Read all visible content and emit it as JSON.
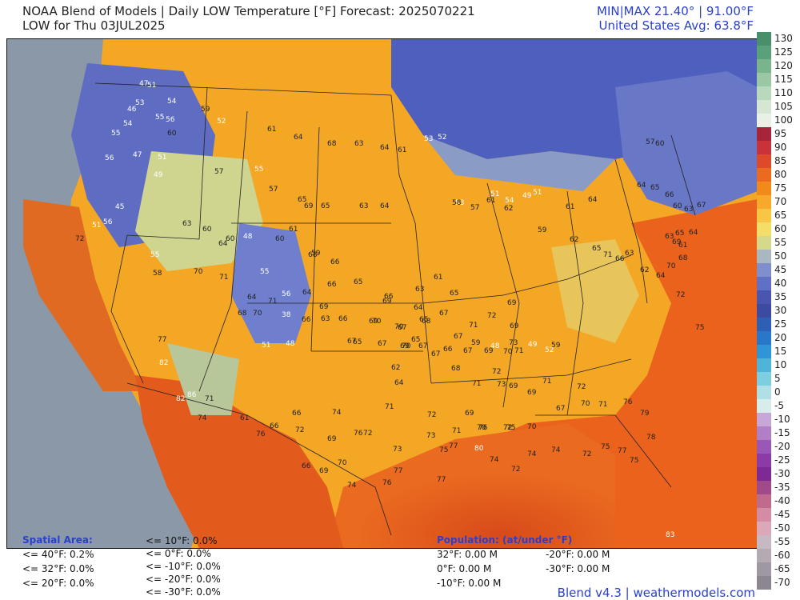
{
  "header": {
    "title": "NOAA Blend of Models | Daily LOW Temperature [°F] Forecast: 2025070221",
    "subtitle": "LOW for Thu 03JUL2025",
    "minmax": "MIN|MAX 21.40° | 91.00°F",
    "average": "United States Avg: 63.8°F"
  },
  "colorbar": {
    "labels": [
      "130",
      "125",
      "120",
      "115",
      "110",
      "105",
      "100",
      "95",
      "90",
      "85",
      "80",
      "75",
      "70",
      "65",
      "60",
      "55",
      "50",
      "45",
      "40",
      "35",
      "30",
      "25",
      "20",
      "15",
      "10",
      "5",
      "0",
      "-5",
      "-10",
      "-15",
      "-20",
      "-25",
      "-30",
      "-35",
      "-40",
      "-45",
      "-50",
      "-55",
      "-60",
      "-65",
      "-70"
    ],
    "colors": [
      "#4a8f6b",
      "#5aa07a",
      "#79b48c",
      "#9cc7a4",
      "#b9d9bc",
      "#d5e7d2",
      "#e9f1e5",
      "#a8243a",
      "#c8323a",
      "#dd4a2a",
      "#ea6a1f",
      "#f18a1a",
      "#f6a92a",
      "#f8c644",
      "#f3de6a",
      "#d6d98a",
      "#a9b8c0",
      "#7f8fce",
      "#6070c4",
      "#4a55b0",
      "#3c4aa0",
      "#2e5fb4",
      "#2a76c8",
      "#2f95d4",
      "#50b4d9",
      "#7fcee0",
      "#b0dfe5",
      "#d8ecec",
      "#c7a7d6",
      "#b07fc6",
      "#9a58b6",
      "#8b3aa6",
      "#7d2a95",
      "#a14a8a",
      "#c06b8e",
      "#d48ca4",
      "#dba8b8",
      "#c7b9c4",
      "#b4aab4",
      "#9f98a2",
      "#8c8690"
    ]
  },
  "spatial_area": {
    "header": "Spatial Area:",
    "col1": [
      "<= 40°F: 0.2%",
      "<= 32°F: 0.0%",
      "<= 20°F: 0.0%"
    ],
    "col2": [
      "<= 10°F: 0.0%",
      "<= 0°F: 0.0%",
      "<= -10°F: 0.0%",
      "<= -20°F: 0.0%",
      "<= -30°F: 0.0%"
    ]
  },
  "population": {
    "header": "Population: (at/under °F)",
    "col1": [
      "32°F: 0.00 M",
      "0°F: 0.00 M",
      "-10°F: 0.00 M"
    ],
    "col2": [
      "-20°F: 0.00 M",
      "-30°F: 0.00 M"
    ]
  },
  "footer": "Blend v4.3 | weathermodels.com",
  "temp_labels": [
    {
      "t": "47"
    },
    {
      "t": "51"
    },
    {
      "t": "53"
    },
    {
      "t": "54"
    },
    {
      "t": "46"
    },
    {
      "t": "55"
    },
    {
      "t": "56"
    },
    {
      "t": "59"
    },
    {
      "t": "54"
    },
    {
      "t": "52"
    },
    {
      "t": "55"
    },
    {
      "t": "60"
    },
    {
      "t": "61"
    },
    {
      "t": "64"
    },
    {
      "t": "68"
    },
    {
      "t": "63"
    },
    {
      "t": "64"
    },
    {
      "t": "61"
    },
    {
      "t": "53"
    },
    {
      "t": "52"
    },
    {
      "t": "56"
    },
    {
      "t": "47"
    },
    {
      "t": "51"
    },
    {
      "t": "49"
    },
    {
      "t": "57"
    },
    {
      "t": "55"
    },
    {
      "t": "57"
    },
    {
      "t": "65"
    },
    {
      "t": "69"
    },
    {
      "t": "65"
    },
    {
      "t": "63"
    },
    {
      "t": "64"
    },
    {
      "t": "51"
    },
    {
      "t": "54"
    },
    {
      "t": "49"
    },
    {
      "t": "51"
    },
    {
      "t": "53"
    },
    {
      "t": "45"
    },
    {
      "t": "56"
    },
    {
      "t": "51"
    },
    {
      "t": "63"
    },
    {
      "t": "60"
    },
    {
      "t": "64"
    },
    {
      "t": "60"
    },
    {
      "t": "48"
    },
    {
      "t": "61"
    },
    {
      "t": "60"
    },
    {
      "t": "59"
    },
    {
      "t": "66"
    },
    {
      "t": "68"
    },
    {
      "t": "66"
    },
    {
      "t": "65"
    },
    {
      "t": "66"
    },
    {
      "t": "69"
    },
    {
      "t": "64"
    },
    {
      "t": "61"
    },
    {
      "t": "63"
    },
    {
      "t": "65"
    },
    {
      "t": "72"
    },
    {
      "t": "55"
    },
    {
      "t": "58"
    },
    {
      "t": "70"
    },
    {
      "t": "71"
    },
    {
      "t": "55"
    },
    {
      "t": "56"
    },
    {
      "t": "64"
    },
    {
      "t": "69"
    },
    {
      "t": "66"
    },
    {
      "t": "67"
    },
    {
      "t": "70"
    },
    {
      "t": "67"
    },
    {
      "t": "65"
    },
    {
      "t": "67"
    },
    {
      "t": "65"
    },
    {
      "t": "70"
    },
    {
      "t": "67"
    },
    {
      "t": "67"
    },
    {
      "t": "71"
    },
    {
      "t": "48"
    },
    {
      "t": "59"
    },
    {
      "t": "64"
    },
    {
      "t": "68"
    },
    {
      "t": "70"
    },
    {
      "t": "71"
    },
    {
      "t": "38"
    },
    {
      "t": "66"
    },
    {
      "t": "63"
    },
    {
      "t": "69"
    },
    {
      "t": "70"
    },
    {
      "t": "68"
    },
    {
      "t": "69"
    },
    {
      "t": "72"
    },
    {
      "t": "69"
    },
    {
      "t": "73"
    },
    {
      "t": "77"
    },
    {
      "t": "82"
    },
    {
      "t": "51"
    },
    {
      "t": "48"
    },
    {
      "t": "65"
    },
    {
      "t": "67"
    },
    {
      "t": "69"
    },
    {
      "t": "67"
    },
    {
      "t": "66"
    },
    {
      "t": "67"
    },
    {
      "t": "69"
    },
    {
      "t": "70"
    },
    {
      "t": "71"
    },
    {
      "t": "49"
    },
    {
      "t": "52"
    },
    {
      "t": "59"
    },
    {
      "t": "62"
    },
    {
      "t": "64"
    },
    {
      "t": "68"
    },
    {
      "t": "71"
    },
    {
      "t": "72"
    },
    {
      "t": "73"
    },
    {
      "t": "69"
    },
    {
      "t": "69"
    },
    {
      "t": "71"
    },
    {
      "t": "72"
    },
    {
      "t": "86"
    },
    {
      "t": "82"
    },
    {
      "t": "71"
    },
    {
      "t": "74"
    },
    {
      "t": "61"
    },
    {
      "t": "66"
    },
    {
      "t": "66"
    },
    {
      "t": "71"
    },
    {
      "t": "74"
    },
    {
      "t": "76"
    },
    {
      "t": "72"
    },
    {
      "t": "69"
    },
    {
      "t": "70"
    },
    {
      "t": "72"
    },
    {
      "t": "70"
    },
    {
      "t": "67"
    },
    {
      "t": "70"
    },
    {
      "t": "71"
    },
    {
      "t": "76"
    },
    {
      "t": "79"
    },
    {
      "t": "76"
    },
    {
      "t": "72"
    },
    {
      "t": "69"
    },
    {
      "t": "72"
    },
    {
      "t": "73"
    },
    {
      "t": "73"
    },
    {
      "t": "75"
    },
    {
      "t": "71"
    },
    {
      "t": "76"
    },
    {
      "t": "75"
    },
    {
      "t": "77"
    },
    {
      "t": "80"
    },
    {
      "t": "74"
    },
    {
      "t": "72"
    },
    {
      "t": "74"
    },
    {
      "t": "74"
    },
    {
      "t": "72"
    },
    {
      "t": "75"
    },
    {
      "t": "77"
    },
    {
      "t": "78"
    },
    {
      "t": "66"
    },
    {
      "t": "69"
    },
    {
      "t": "70"
    },
    {
      "t": "74"
    },
    {
      "t": "76"
    },
    {
      "t": "77"
    },
    {
      "t": "77"
    },
    {
      "t": "83"
    },
    {
      "t": "75"
    },
    {
      "t": "58"
    },
    {
      "t": "57"
    },
    {
      "t": "61"
    },
    {
      "t": "62"
    },
    {
      "t": "57"
    },
    {
      "t": "60"
    },
    {
      "t": "64"
    },
    {
      "t": "65"
    },
    {
      "t": "66"
    },
    {
      "t": "60"
    },
    {
      "t": "63"
    },
    {
      "t": "64"
    },
    {
      "t": "61"
    },
    {
      "t": "59"
    },
    {
      "t": "62"
    },
    {
      "t": "65"
    },
    {
      "t": "71"
    },
    {
      "t": "66"
    },
    {
      "t": "63"
    },
    {
      "t": "62"
    },
    {
      "t": "64"
    },
    {
      "t": "65"
    },
    {
      "t": "63"
    },
    {
      "t": "69"
    },
    {
      "t": "64"
    },
    {
      "t": "61"
    },
    {
      "t": "67"
    },
    {
      "t": "68"
    },
    {
      "t": "70"
    },
    {
      "t": "72"
    },
    {
      "t": "75"
    }
  ]
}
